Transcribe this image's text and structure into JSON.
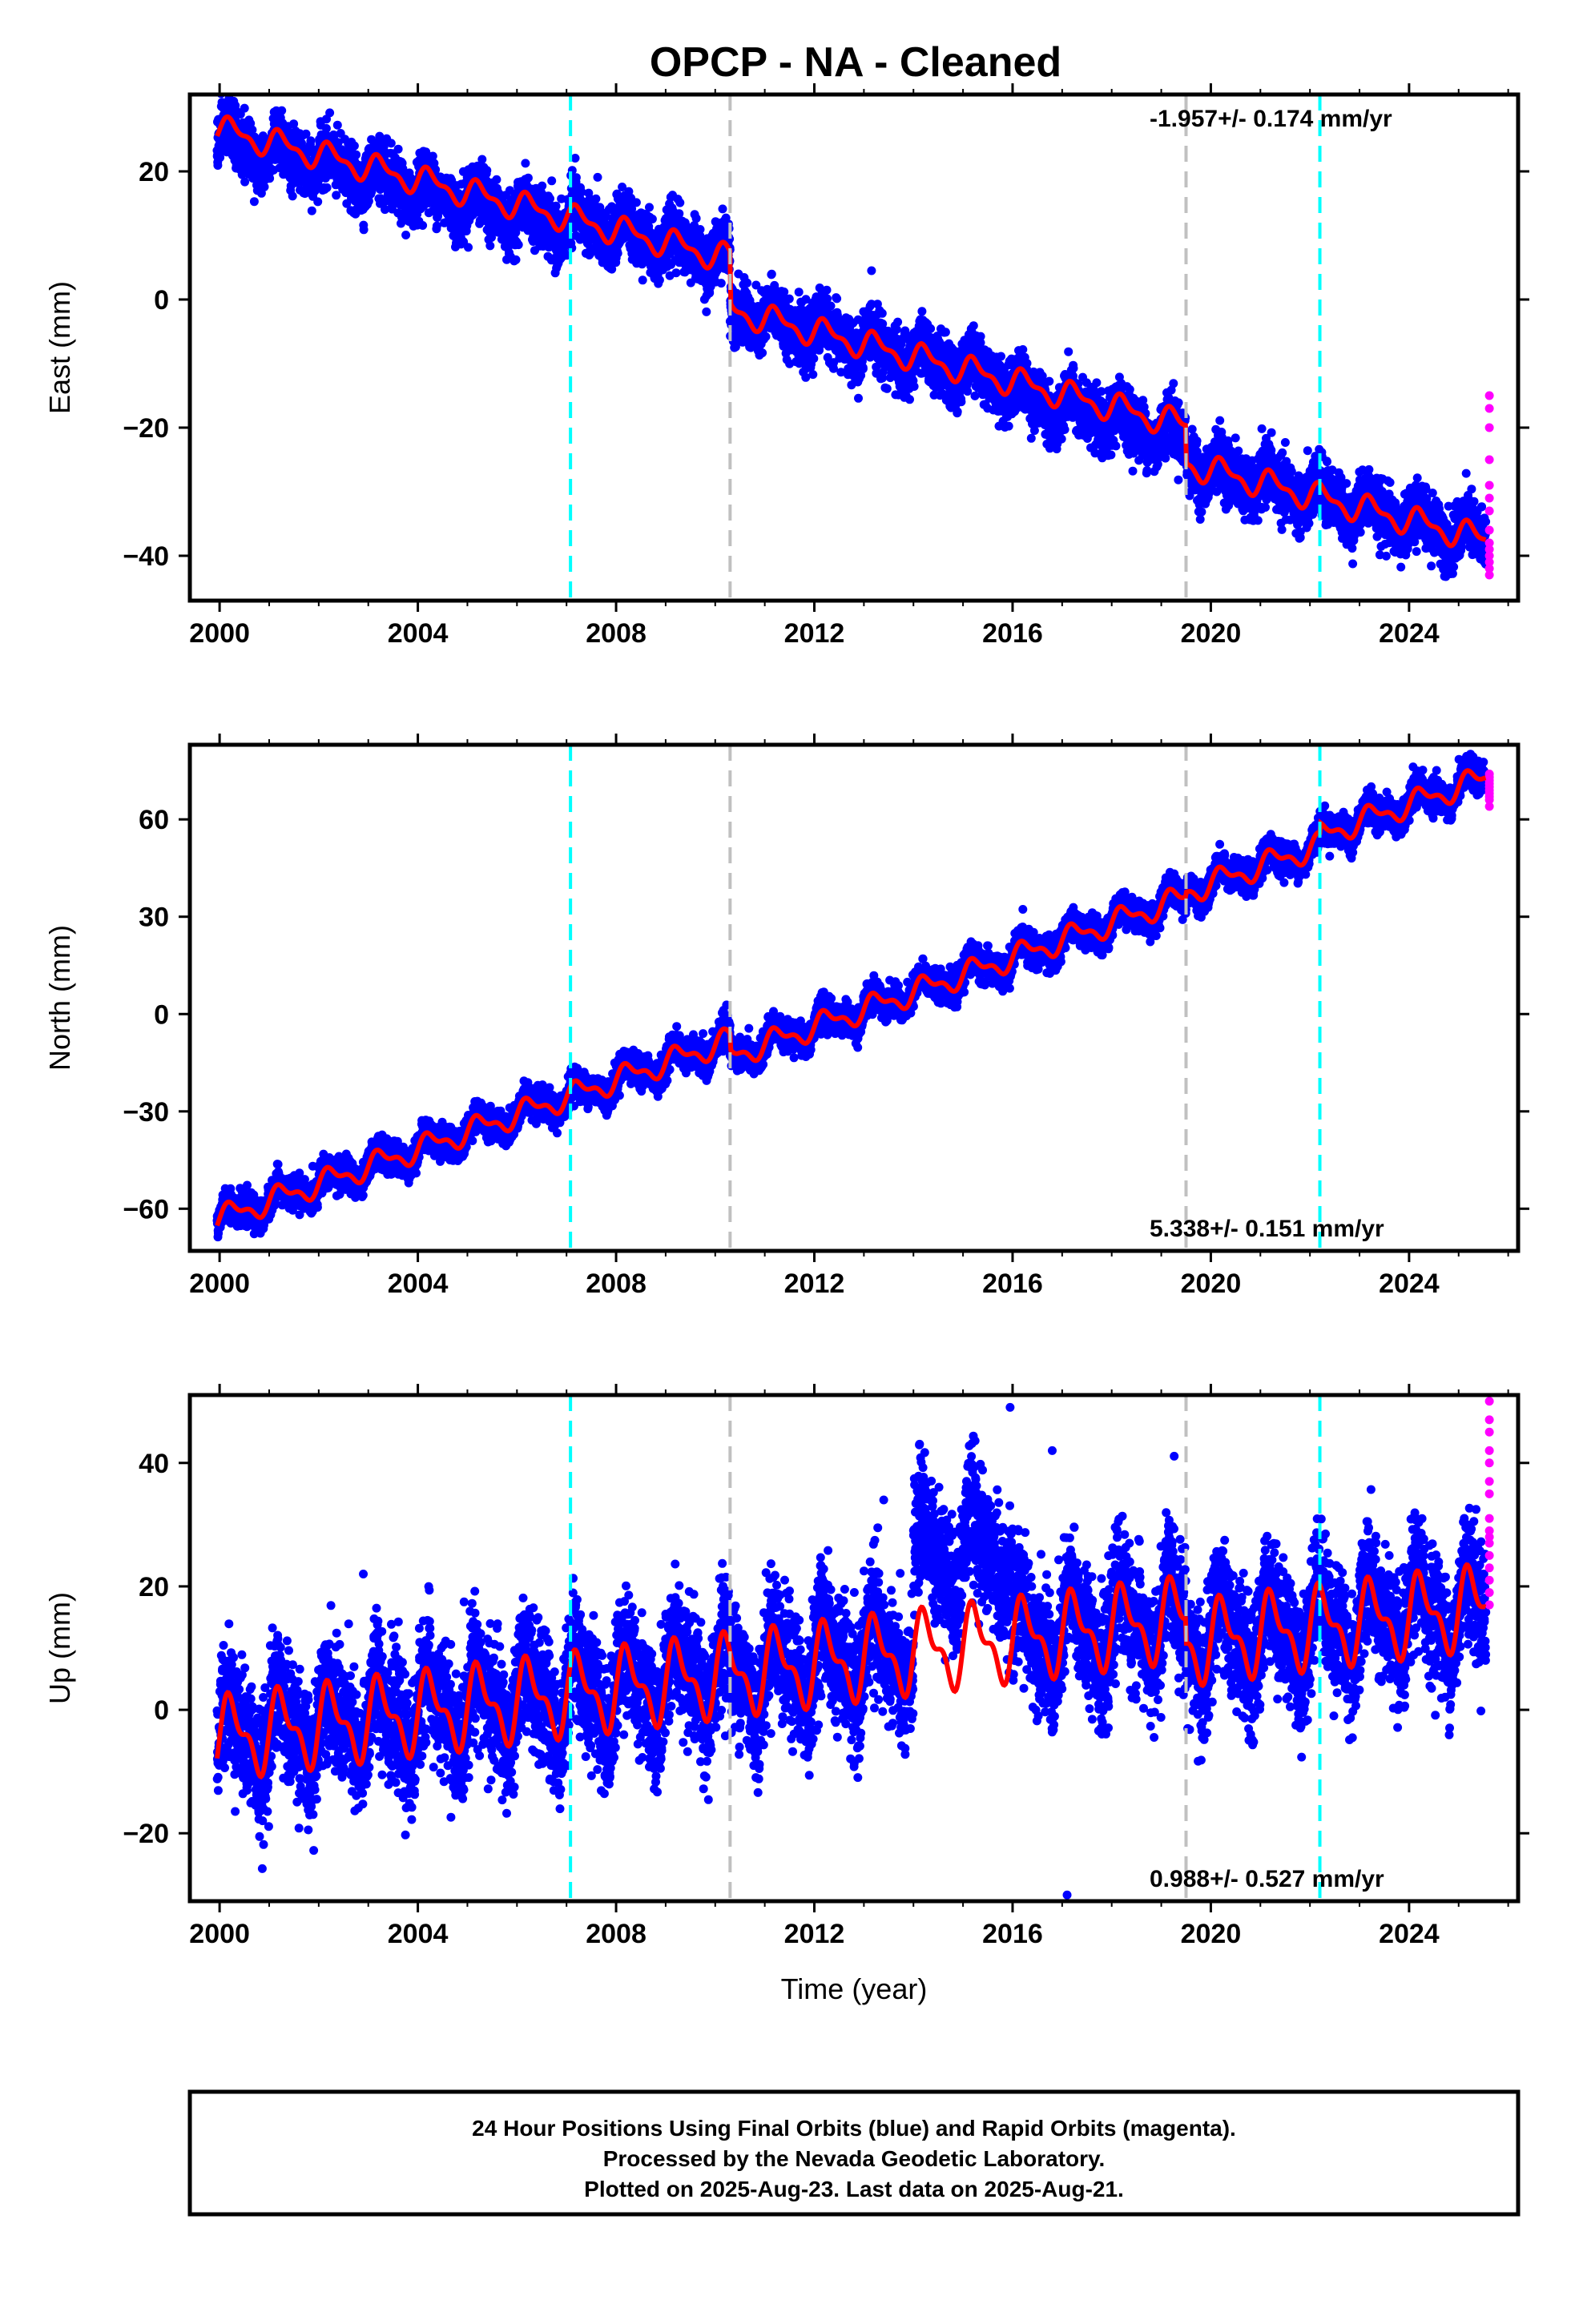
{
  "title": "OPCP  - NA - Cleaned",
  "footer": {
    "lines": [
      "24 Hour Positions Using Final Orbits (blue) and Rapid Orbits (magenta).",
      "Processed by the Nevada Geodetic Laboratory.",
      "Plotted on 2025-Aug-23. Last data on 2025-Aug-21."
    ]
  },
  "colors": {
    "final_orbits": "#0000ff",
    "rapid_orbits": "#ff00ff",
    "model": "#ff0000",
    "equipment_change": "#00ffff",
    "other_event": "#c0c0c0",
    "frame": "#000000"
  },
  "chart_data": [
    {
      "type": "scatter",
      "id": "east",
      "ylabel": "East (mm)",
      "xlabel": "",
      "xlim": [
        1999.4,
        2026.2
      ],
      "ylim": [
        -47,
        32
      ],
      "xticks": [
        "2000",
        "2004",
        "2008",
        "2012",
        "2016",
        "2020",
        "2024"
      ],
      "yticks": [
        "20",
        "0",
        "−20",
        "−40"
      ],
      "rate_text": "-1.957+/- 0.174 mm/yr",
      "rate_position": "top-right",
      "event_lines": [
        {
          "x": 2007.08,
          "kind": "equipment_change"
        },
        {
          "x": 2010.3,
          "kind": "other_event"
        },
        {
          "x": 2019.5,
          "kind": "other_event"
        },
        {
          "x": 2022.2,
          "kind": "equipment_change"
        }
      ],
      "rate_mm_per_yr": -1.957,
      "model_offset_at_2000": 26.5,
      "annual_amplitude_mm": 1.8,
      "scatter_noise_mm": 2.2,
      "steps": [
        {
          "x": 2010.3,
          "offset": -8.0
        },
        {
          "x": 2019.5,
          "offset": -6.0
        },
        {
          "x": 2022.2,
          "offset": 0
        }
      ],
      "segments_shift": [
        {
          "from": 1999.95,
          "to": 2007.08,
          "delta": -1.5
        },
        {
          "from": 2016.0,
          "to": 2019.5,
          "delta": -2.0
        }
      ],
      "blue_x_range": [
        1999.95,
        2025.55
      ],
      "magenta": {
        "x": 2025.62,
        "values": [
          -15,
          -17,
          -20,
          -25,
          -29,
          -31,
          -33,
          -36,
          -38,
          -39,
          -40,
          -41,
          -42,
          -43
        ]
      },
      "grid": false,
      "legend": "none"
    },
    {
      "type": "scatter",
      "id": "north",
      "ylabel": "North (mm)",
      "xlabel": "",
      "xlim": [
        1999.4,
        2026.2
      ],
      "ylim": [
        -73,
        83
      ],
      "xticks": [
        "2000",
        "2004",
        "2008",
        "2012",
        "2016",
        "2020",
        "2024"
      ],
      "yticks": [
        "60",
        "30",
        "0",
        "−30",
        "−60"
      ],
      "rate_text": "5.338+/- 0.151 mm/yr",
      "rate_position": "bottom-right",
      "event_lines": [
        {
          "x": 2007.08,
          "kind": "equipment_change"
        },
        {
          "x": 2010.3,
          "kind": "other_event"
        },
        {
          "x": 2019.5,
          "kind": "other_event"
        },
        {
          "x": 2022.2,
          "kind": "equipment_change"
        }
      ],
      "rate_mm_per_yr": 5.338,
      "model_offset_at_2000": -63,
      "annual_amplitude_mm": 3.2,
      "scatter_noise_mm": 2.3,
      "steps": [
        {
          "x": 2010.3,
          "offset": -5.0
        },
        {
          "x": 2019.5,
          "offset": 1.5
        },
        {
          "x": 2022.2,
          "offset": 3.0
        }
      ],
      "segments_shift": [],
      "blue_x_range": [
        1999.95,
        2025.55
      ],
      "magenta": {
        "x": 2025.62,
        "values": [
          64,
          66,
          67,
          68,
          69,
          70,
          71,
          72,
          73,
          74
        ]
      },
      "grid": false,
      "legend": "none"
    },
    {
      "type": "scatter",
      "id": "up",
      "ylabel": "Up (mm)",
      "xlabel": "Time (year)",
      "xlim": [
        1999.4,
        2026.2
      ],
      "ylim": [
        -31,
        51
      ],
      "xticks": [
        "2000",
        "2004",
        "2008",
        "2012",
        "2016",
        "2020",
        "2024"
      ],
      "yticks": [
        "40",
        "20",
        "0",
        "−20"
      ],
      "rate_text": "0.988+/- 0.527 mm/yr",
      "rate_position": "bottom-right",
      "event_lines": [
        {
          "x": 2007.08,
          "kind": "equipment_change"
        },
        {
          "x": 2010.3,
          "kind": "other_event"
        },
        {
          "x": 2019.5,
          "kind": "other_event"
        },
        {
          "x": 2022.2,
          "kind": "equipment_change"
        }
      ],
      "rate_mm_per_yr": 0.988,
      "model_offset_at_2000": -4.5,
      "annual_amplitude_mm": 5.5,
      "scatter_noise_mm": 5.0,
      "steps": [
        {
          "x": 2019.5,
          "offset": -4.0
        }
      ],
      "segments_shift": [
        {
          "from": 2014.0,
          "to": 2016.0,
          "delta": 15
        }
      ],
      "blue_x_range": [
        1999.95,
        2025.55
      ],
      "outliers": [
        [
          2015.95,
          49
        ],
        [
          2017.1,
          -30
        ],
        [
          2016.8,
          42
        ],
        [
          2002.9,
          22
        ],
        [
          2013.4,
          34
        ]
      ],
      "magenta": {
        "x": 2025.62,
        "values": [
          50,
          47,
          45,
          42,
          40,
          37,
          35,
          31,
          29,
          28,
          27,
          25,
          23,
          21,
          19,
          17
        ]
      },
      "grid": false,
      "legend": "none"
    }
  ]
}
